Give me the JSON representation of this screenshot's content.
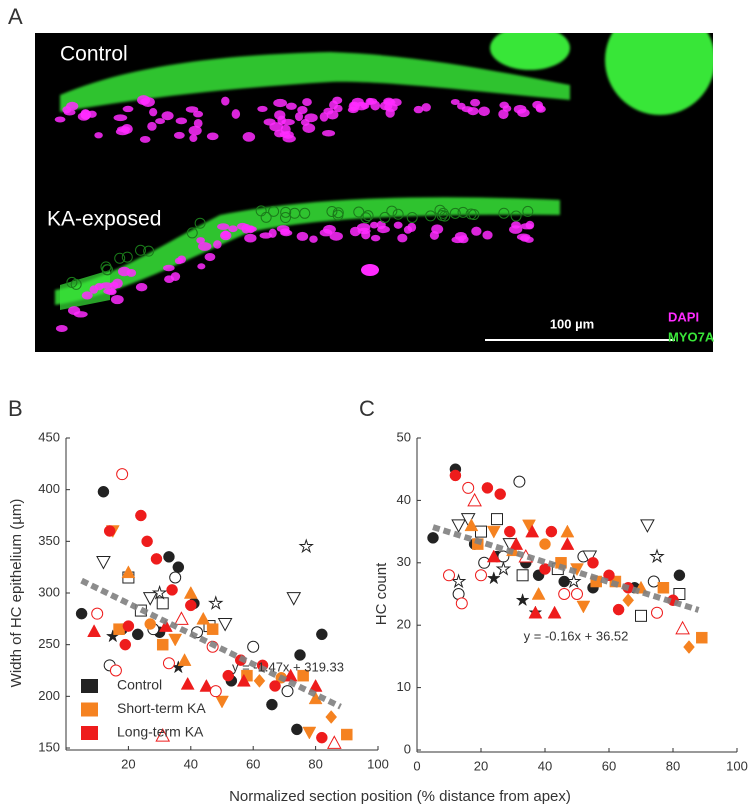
{
  "figure": {
    "panel": "A",
    "labels": [
      "Control",
      "KA-exposed"
    ],
    "scale_bar": "100 µm",
    "channels": [
      {
        "name": "DAPI",
        "color": "#ff2bff"
      },
      {
        "name": "MYO7A",
        "color": "#39e639"
      }
    ]
  },
  "chart_data": [
    {
      "type": "scatter",
      "panel": "B",
      "ylabel": "Width of HC epithelium (µm)",
      "xlabel": "Normalized section position (% distance from apex)",
      "xlim": [
        0,
        100
      ],
      "xticks": [
        20,
        40,
        60,
        80,
        100
      ],
      "ylim": [
        150,
        450
      ],
      "yticks": [
        150,
        200,
        250,
        300,
        350,
        400,
        450
      ],
      "legend": "lower left",
      "trend": {
        "slope": -1.47,
        "intercept": 319.33,
        "x": [
          5,
          88
        ],
        "label": "y = -1.47x + 319.33",
        "color": "#808080"
      },
      "series": [
        {
          "name": "Control",
          "color": "#222222",
          "x": [
            5,
            12,
            18,
            23,
            30,
            33,
            36,
            41,
            53,
            66,
            75,
            82,
            74,
            14,
            28,
            35,
            42,
            60,
            71,
            20,
            31,
            24,
            46,
            12,
            27,
            51,
            73,
            15,
            36,
            48,
            77,
            30
          ],
          "values": [
            280,
            398,
            265,
            260,
            262,
            335,
            325,
            290,
            215,
            192,
            240,
            260,
            168,
            230,
            265,
            315,
            262,
            248,
            205,
            315,
            290,
            283,
            268,
            330,
            295,
            270,
            295,
            258,
            228,
            290,
            345,
            300
          ],
          "markers": [
            "circle",
            "circle",
            "circle",
            "circle",
            "circle",
            "circle",
            "circle",
            "circle",
            "circle",
            "circle",
            "circle",
            "circle",
            "circle",
            "circle-open",
            "circle-open",
            "circle-open",
            "circle-open",
            "circle-open",
            "circle-open",
            "square-open",
            "square-open",
            "square-open",
            "square-open",
            "triangle-down-open",
            "triangle-down-open",
            "triangle-down-open",
            "triangle-down-open",
            "star",
            "star",
            "star-open",
            "star-open",
            "star-open"
          ]
        },
        {
          "name": "Short-term KA",
          "color": "#f58220",
          "x": [
            15,
            20,
            17,
            27,
            31,
            35,
            38,
            44,
            47,
            50,
            58,
            62,
            69,
            76,
            78,
            85,
            90,
            80,
            40
          ],
          "values": [
            360,
            320,
            265,
            270,
            250,
            255,
            235,
            275,
            265,
            195,
            220,
            215,
            218,
            220,
            165,
            180,
            163,
            198,
            300
          ],
          "markers": [
            "triangle-down",
            "triangle",
            "square",
            "circle",
            "square",
            "triangle-down",
            "triangle",
            "triangle",
            "square",
            "triangle-down",
            "square",
            "diamond",
            "circle",
            "square",
            "triangle-down",
            "diamond",
            "square",
            "triangle",
            "triangle"
          ]
        },
        {
          "name": "Long-term KA",
          "color": "#ee1c1c",
          "x": [
            9,
            14,
            18,
            19,
            24,
            26,
            29,
            34,
            32,
            37,
            40,
            45,
            47,
            52,
            56,
            63,
            67,
            72,
            80,
            82,
            86,
            10,
            16,
            33,
            39,
            48,
            31,
            57,
            20
          ],
          "values": [
            263,
            360,
            415,
            250,
            375,
            350,
            333,
            303,
            268,
            275,
            288,
            210,
            248,
            220,
            235,
            230,
            210,
            220,
            210,
            160,
            155,
            280,
            225,
            232,
            212,
            205,
            162,
            215,
            268
          ],
          "markers": [
            "triangle",
            "circle",
            "circle-open",
            "circle",
            "circle",
            "circle",
            "circle",
            "circle",
            "triangle",
            "triangle-open",
            "circle",
            "triangle",
            "circle-open",
            "circle",
            "circle",
            "circle",
            "circle",
            "triangle",
            "triangle",
            "circle",
            "triangle-open",
            "circle-open",
            "circle-open",
            "circle-open",
            "triangle",
            "circle-open",
            "triangle-open",
            "triangle",
            "circle"
          ]
        }
      ]
    },
    {
      "type": "scatter",
      "panel": "C",
      "ylabel": "HC count",
      "xlim": [
        0,
        100
      ],
      "xticks": [
        0,
        20,
        40,
        60,
        80,
        100
      ],
      "ylim": [
        0,
        50
      ],
      "yticks": [
        0,
        10,
        20,
        30,
        40,
        50
      ],
      "trend": {
        "slope": -0.16,
        "intercept": 36.52,
        "x": [
          5,
          88
        ],
        "label": "y = -0.16x + 36.52",
        "color": "#808080"
      },
      "series": [
        {
          "color": "#222222",
          "x": [
            5,
            12,
            18,
            25,
            30,
            34,
            38,
            46,
            55,
            68,
            82,
            33,
            37,
            13,
            21,
            32,
            52,
            74,
            27,
            20,
            25,
            33,
            44,
            70,
            82,
            13,
            16,
            29,
            54,
            72,
            13,
            24,
            49,
            75,
            27
          ],
          "values": [
            34,
            45,
            33,
            31,
            33,
            30,
            28,
            27,
            26,
            26,
            28,
            24,
            22,
            25,
            30,
            43,
            31,
            27,
            31,
            35,
            37,
            28,
            29,
            21.5,
            25,
            36,
            37,
            33,
            31,
            36,
            27,
            27.5,
            27,
            31,
            29
          ],
          "markers": [
            "circle",
            "circle",
            "circle",
            "circle",
            "circle",
            "circle",
            "circle",
            "circle",
            "circle",
            "circle",
            "circle",
            "star",
            "star",
            "circle-open",
            "circle-open",
            "circle-open",
            "circle-open",
            "circle-open",
            "circle-open",
            "square-open",
            "square-open",
            "square-open",
            "square-open",
            "square-open",
            "square-open",
            "triangle-down-open",
            "triangle-down-open",
            "triangle-down-open",
            "triangle-down-open",
            "triangle-down-open",
            "star-open",
            "star",
            "star-open",
            "star-open",
            "star-open"
          ]
        },
        {
          "color": "#f58220",
          "x": [
            17,
            19,
            24,
            30,
            35,
            40,
            45,
            47,
            50,
            56,
            62,
            66,
            70,
            77,
            85,
            89,
            38,
            52
          ],
          "values": [
            36,
            33,
            35,
            32,
            36,
            33,
            30,
            35,
            29,
            27,
            27,
            24,
            26,
            26,
            16.5,
            18,
            25,
            23
          ],
          "markers": [
            "triangle",
            "square",
            "triangle-down",
            "triangle",
            "triangle-down",
            "circle",
            "square",
            "triangle",
            "triangle-down",
            "square",
            "square",
            "diamond",
            "triangle",
            "square",
            "diamond",
            "square",
            "triangle",
            "triangle-down"
          ]
        },
        {
          "color": "#ee1c1c",
          "x": [
            12,
            16,
            18,
            22,
            26,
            29,
            31,
            36,
            40,
            42,
            47,
            50,
            55,
            60,
            66,
            75,
            80,
            83,
            10,
            20,
            14,
            24,
            34,
            46,
            63,
            43,
            37
          ],
          "values": [
            44,
            42,
            40,
            42,
            41,
            35,
            33,
            35,
            29,
            35,
            33,
            25,
            30,
            28,
            26,
            22,
            24,
            19.5,
            28,
            28,
            23.5,
            31,
            31,
            25,
            22.5,
            22,
            22
          ],
          "markers": [
            "circle",
            "circle-open",
            "triangle-open",
            "circle",
            "circle",
            "circle",
            "triangle",
            "triangle",
            "circle",
            "circle",
            "triangle",
            "circle-open",
            "circle",
            "circle",
            "circle",
            "circle-open",
            "circle",
            "triangle-open",
            "circle-open",
            "circle-open",
            "circle-open",
            "triangle",
            "triangle-open",
            "circle-open",
            "circle",
            "triangle",
            "triangle"
          ]
        }
      ]
    }
  ]
}
